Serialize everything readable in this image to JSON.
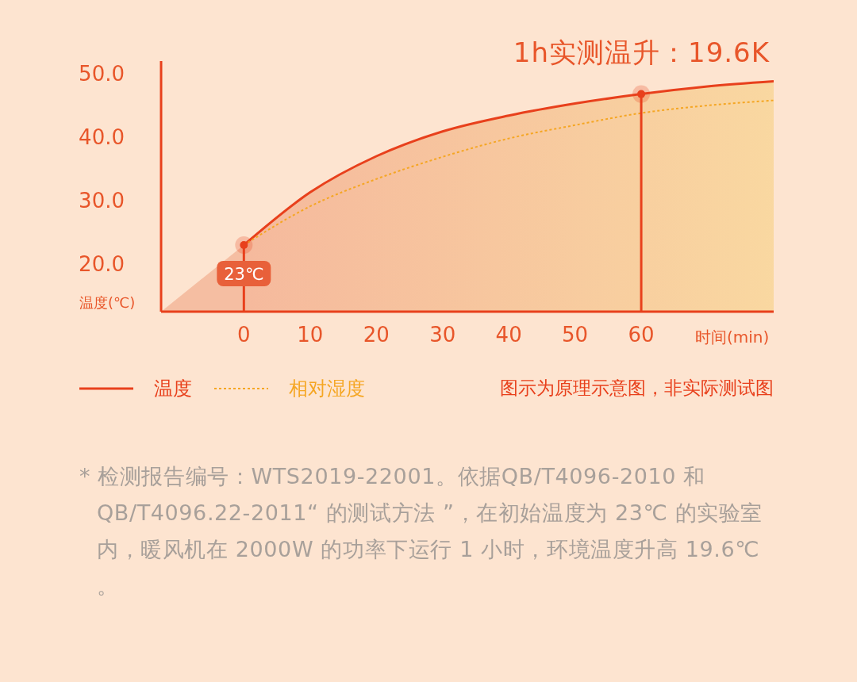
{
  "chart_data": {
    "type": "line",
    "xlabel": "时间(min)",
    "ylabel": "温度(℃)",
    "xlim": [
      -12.5,
      80
    ],
    "xticks": [
      0,
      10,
      20,
      30,
      40,
      50,
      60
    ],
    "ylim": [
      12.5,
      52
    ],
    "yticks": [
      {
        "value": 20,
        "label": "20.0"
      },
      {
        "value": 30,
        "label": "30.0"
      },
      {
        "value": 40,
        "label": "40.0"
      },
      {
        "value": 50,
        "label": "50.0"
      }
    ],
    "series": [
      {
        "name": "温度",
        "type": "area",
        "color": "#e8401c",
        "line_style": "solid",
        "x": [
          0,
          10,
          20,
          30,
          40,
          50,
          60,
          70,
          80
        ],
        "values": [
          23,
          31.3,
          37,
          40.9,
          43.4,
          45.3,
          46.8,
          48,
          48.8
        ]
      },
      {
        "name": "相对湿度",
        "color": "#f5a623",
        "line_style": "dotted",
        "x": [
          0,
          10,
          20,
          30,
          40,
          50,
          60,
          70,
          80
        ],
        "values": [
          23,
          29.1,
          33.4,
          36.9,
          39.8,
          41.9,
          43.8,
          45,
          45.8
        ]
      },
      {
        "type": "area",
        "color": "#f3b496",
        "x": [
          -12.5,
          0
        ],
        "values": [
          12.5,
          23
        ]
      }
    ],
    "ref_lines": [
      {
        "axis": "x",
        "value": 0,
        "color": "#e8401c"
      },
      {
        "axis": "x",
        "value": 60,
        "color": "#e8401c"
      }
    ],
    "legend": "bottom left",
    "annotations": [
      {
        "text": "23℃",
        "x": 0,
        "y": 23
      },
      "1h实测温升：19.6K",
      "图示为原理示意图，非实际测试图",
      "* 检测报告编号：WTS2019-22001。依据QB/T4096-2010 和 QB/T4096.22-2011“ 的测试方法 ”，在初始温度为 23℃ 的实验室内，暖风机在 2000W 的功率下运行 1 小时，环境温度升高 19.6℃ 。"
    ]
  }
}
